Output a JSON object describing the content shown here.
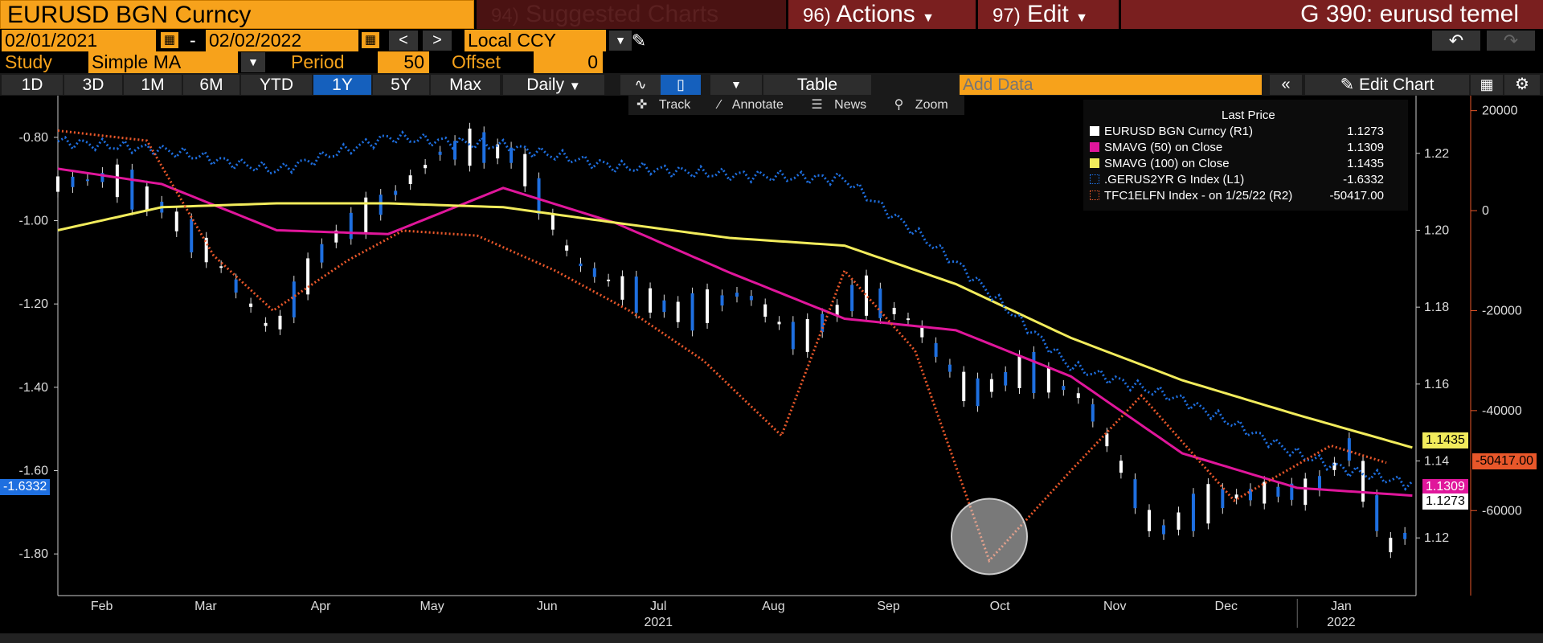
{
  "header": {
    "security": "EURUSD BGN Curncy",
    "suggested": "Suggested Charts",
    "suggested_num": "94)",
    "actions": "Actions",
    "actions_num": "96)",
    "edit": "Edit",
    "edit_num": "97)",
    "title": "G 390: eurusd temel"
  },
  "dates": {
    "start": "02/01/2021",
    "sep": "-",
    "end": "02/02/2022",
    "prev": "<",
    "next": ">",
    "currency": "Local CCY"
  },
  "study": {
    "label": "Study",
    "value": "Simple MA",
    "period_label": "Period",
    "period": "50",
    "offset_label": "Offset",
    "offset": "0"
  },
  "tabs": [
    "1D",
    "3D",
    "1M",
    "6M",
    "YTD",
    "1Y",
    "5Y",
    "Max"
  ],
  "active_tab": "1Y",
  "frequency": "Daily",
  "table_label": "Table",
  "add_data_placeholder": "Add Data",
  "edit_chart": "Edit Chart",
  "chart_tools": [
    "Track",
    "Annotate",
    "News",
    "Zoom"
  ],
  "legend": {
    "title": "Last Price",
    "items": [
      {
        "name": "EURUSD BGN Curncy  (R1)",
        "value": "1.1273",
        "color": "#ffffff"
      },
      {
        "name": "SMAVG (50)  on Close",
        "value": "1.1309",
        "color": "#e0169b"
      },
      {
        "name": "SMAVG (100)  on Close",
        "value": "1.1435",
        "color": "#f2ec5c"
      },
      {
        "name": ".GERUS2YR G Index  (L1)",
        "value": "-1.6332",
        "color": "#1e6fe0"
      },
      {
        "name": "TFC1ELFN Index -  on 1/25/22  (R2)",
        "value": "-50417.00",
        "color": "#e8572a"
      }
    ]
  },
  "axis_left": [
    "-0.80",
    "-1.00",
    "-1.20",
    "-1.40",
    "-1.60",
    "-1.80"
  ],
  "axis_r1": [
    "1.22",
    "1.20",
    "1.18",
    "1.16",
    "1.14",
    "1.12"
  ],
  "axis_r2": [
    "20000",
    "0",
    "-20000",
    "-40000",
    "-60000"
  ],
  "months": [
    "Feb",
    "Mar",
    "Apr",
    "May",
    "Jun",
    "Jul",
    "Aug",
    "Sep",
    "Oct",
    "Nov",
    "Dec",
    "Jan"
  ],
  "years": [
    "2021",
    "2022"
  ],
  "tags": {
    "left": "-1.6332",
    "sma100": "1.1435",
    "r2": "-50417.00",
    "sma50": "1.1309",
    "last": "1.1273"
  },
  "colors": {
    "orange": "#f7a21b",
    "blue": "#1e6fe0",
    "magenta": "#e0169b",
    "yellow": "#f2ec5c",
    "red_orange": "#e8572a"
  },
  "chart_data": {
    "type": "line",
    "title": "",
    "x_axis_type": "date",
    "x_range": [
      "2021-02-01",
      "2022-02-02"
    ],
    "series": [
      {
        "name": "EURUSD BGN Curncy (R1)",
        "axis": "R1",
        "style": "candlestick",
        "x": [
          "2021-02-01",
          "2021-02-15",
          "2021-03-01",
          "2021-03-15",
          "2021-03-31",
          "2021-04-15",
          "2021-05-01",
          "2021-05-15",
          "2021-05-25",
          "2021-06-05",
          "2021-06-20",
          "2021-07-05",
          "2021-07-20",
          "2021-08-05",
          "2021-08-20",
          "2021-09-05",
          "2021-09-20",
          "2021-10-05",
          "2021-10-20",
          "2021-11-05",
          "2021-11-24",
          "2021-12-10",
          "2021-12-25",
          "2022-01-05",
          "2022-01-15",
          "2022-01-28",
          "2022-02-01"
        ],
        "values": [
          1.212,
          1.214,
          1.206,
          1.193,
          1.173,
          1.197,
          1.208,
          1.22,
          1.222,
          1.219,
          1.192,
          1.184,
          1.178,
          1.184,
          1.171,
          1.184,
          1.176,
          1.157,
          1.164,
          1.156,
          1.121,
          1.13,
          1.132,
          1.132,
          1.143,
          1.114,
          1.127
        ]
      },
      {
        "name": "SMAVG (50) on Close",
        "axis": "R1",
        "x": [
          "2021-02-01",
          "2021-03-01",
          "2021-04-01",
          "2021-05-01",
          "2021-06-01",
          "2021-07-01",
          "2021-08-01",
          "2021-09-01",
          "2021-10-01",
          "2021-11-01",
          "2021-12-01",
          "2022-01-01",
          "2022-02-01"
        ],
        "values": [
          1.216,
          1.212,
          1.2,
          1.199,
          1.211,
          1.202,
          1.189,
          1.177,
          1.174,
          1.162,
          1.142,
          1.133,
          1.131
        ]
      },
      {
        "name": "SMAVG (100) on Close",
        "axis": "R1",
        "x": [
          "2021-02-01",
          "2021-03-01",
          "2021-04-01",
          "2021-05-01",
          "2021-06-01",
          "2021-07-01",
          "2021-08-01",
          "2021-09-01",
          "2021-10-01",
          "2021-11-01",
          "2021-12-01",
          "2022-01-01",
          "2022-02-01"
        ],
        "values": [
          1.2,
          1.206,
          1.207,
          1.207,
          1.206,
          1.202,
          1.198,
          1.196,
          1.186,
          1.172,
          1.161,
          1.152,
          1.1435
        ]
      },
      {
        "name": ".GERUS2YR G Index (L1)",
        "axis": "L1",
        "x": [
          "2021-02-01",
          "2021-03-01",
          "2021-04-01",
          "2021-05-01",
          "2021-06-01",
          "2021-07-01",
          "2021-08-01",
          "2021-09-01",
          "2021-10-01",
          "2021-11-01",
          "2021-12-01",
          "2022-01-01",
          "2022-01-15",
          "2022-02-01"
        ],
        "values": [
          -0.81,
          -0.83,
          -0.88,
          -0.8,
          -0.82,
          -0.87,
          -0.89,
          -0.9,
          -1.1,
          -1.35,
          -1.43,
          -1.56,
          -1.6,
          -1.633
        ]
      },
      {
        "name": "TFC1ELFN Index - on 1/25/22 (R2)",
        "axis": "R2",
        "x": [
          "2021-02-01",
          "2021-02-25",
          "2021-03-15",
          "2021-03-31",
          "2021-04-20",
          "2021-05-05",
          "2021-05-25",
          "2021-06-15",
          "2021-07-05",
          "2021-07-25",
          "2021-08-15",
          "2021-09-01",
          "2021-09-20",
          "2021-10-10",
          "2021-11-01",
          "2021-11-20",
          "2021-12-15",
          "2022-01-10",
          "2022-01-25"
        ],
        "values": [
          16000,
          14000,
          -9000,
          -20000,
          -10000,
          -4000,
          -5000,
          -12000,
          -20000,
          -30000,
          -45000,
          -12000,
          -28000,
          -70000,
          -52000,
          -37000,
          -58000,
          -47000,
          -50417
        ]
      }
    ],
    "ylim_L1": [
      -1.9,
      -0.7
    ],
    "ylim_R1": [
      1.105,
      1.235
    ],
    "ylim_R2": [
      -77000,
      23000
    ],
    "grid": false,
    "legend_position": "top-right"
  }
}
